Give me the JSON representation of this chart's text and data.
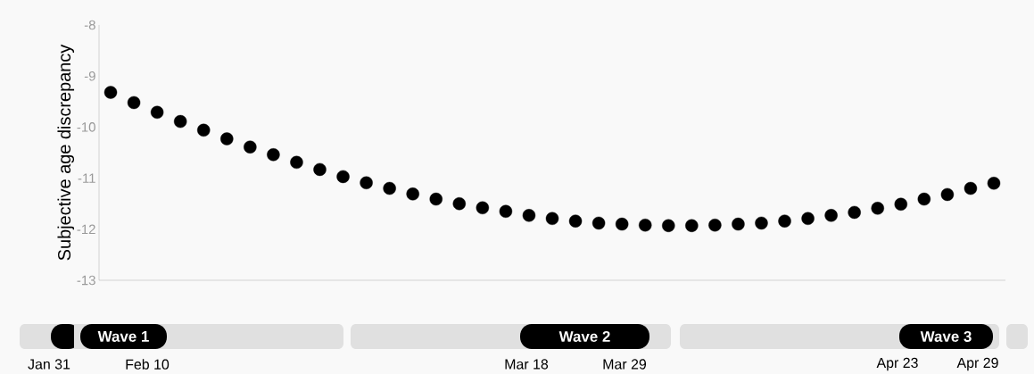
{
  "chart_data": {
    "type": "scatter",
    "ylabel": "Subjective age discrepancy",
    "categories": [
      null,
      null,
      null,
      null,
      null,
      null,
      null,
      null,
      null,
      null,
      null,
      null,
      null,
      null,
      null,
      null,
      null,
      null,
      null,
      null,
      null,
      null,
      null,
      null,
      null,
      null,
      null,
      null,
      null,
      null,
      null,
      null,
      null,
      null,
      null,
      null,
      null,
      null,
      null
    ],
    "values": [
      -9.32,
      -9.52,
      -9.71,
      -9.89,
      -10.06,
      -10.23,
      -10.39,
      -10.54,
      -10.69,
      -10.83,
      -10.97,
      -11.09,
      -11.2,
      -11.31,
      -11.41,
      -11.5,
      -11.58,
      -11.65,
      -11.73,
      -11.79,
      -11.84,
      -11.88,
      -11.9,
      -11.92,
      -11.93,
      -11.93,
      -11.92,
      -11.9,
      -11.88,
      -11.84,
      -11.79,
      -11.73,
      -11.67,
      -11.59,
      -11.51,
      -11.41,
      -11.32,
      -11.2,
      -11.1
    ],
    "color": "#000000",
    "ylim": [
      -13,
      -8
    ],
    "yticks": [
      -13,
      -12,
      -11,
      -10,
      -9,
      -8
    ],
    "annotations": [
      "Wave 1",
      "Wave 2",
      "Wave 3",
      "Jan 31",
      "Feb 10",
      "Mar 18",
      "Mar 29",
      "Apr 23",
      "Apr 29"
    ]
  }
}
